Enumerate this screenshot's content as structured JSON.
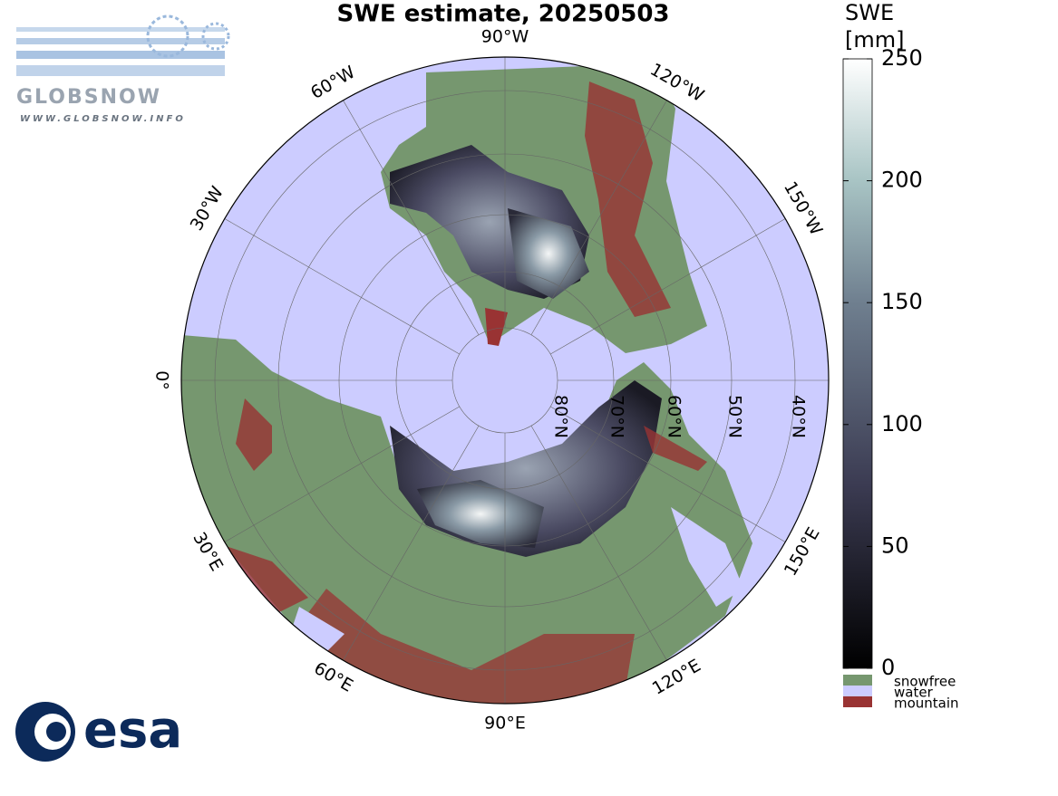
{
  "header": {
    "title": "SWE estimate, 20250503"
  },
  "map": {
    "longitude_labels": [
      "0°",
      "30°W",
      "60°W",
      "90°W",
      "120°W",
      "150°W",
      "150°E",
      "120°E",
      "90°E",
      "60°E",
      "30°E"
    ],
    "latitude_labels": [
      "80°N",
      "70°N",
      "60°N",
      "50°N",
      "40°N"
    ]
  },
  "colorbar": {
    "label": [
      "SWE",
      "[mm]"
    ],
    "range": [
      0,
      250
    ],
    "ticks": [
      0,
      50,
      100,
      150,
      200,
      250
    ]
  },
  "legend": [
    {
      "name": "snowfree",
      "color": "#76976f"
    },
    {
      "name": "water",
      "color": "#ccccff"
    },
    {
      "name": "mountain",
      "color": "#993333"
    }
  ],
  "logos": {
    "globsnow": "GLOBSNOW",
    "url": "WWW.GLOBSNOW.INFO",
    "esa": "esa"
  }
}
